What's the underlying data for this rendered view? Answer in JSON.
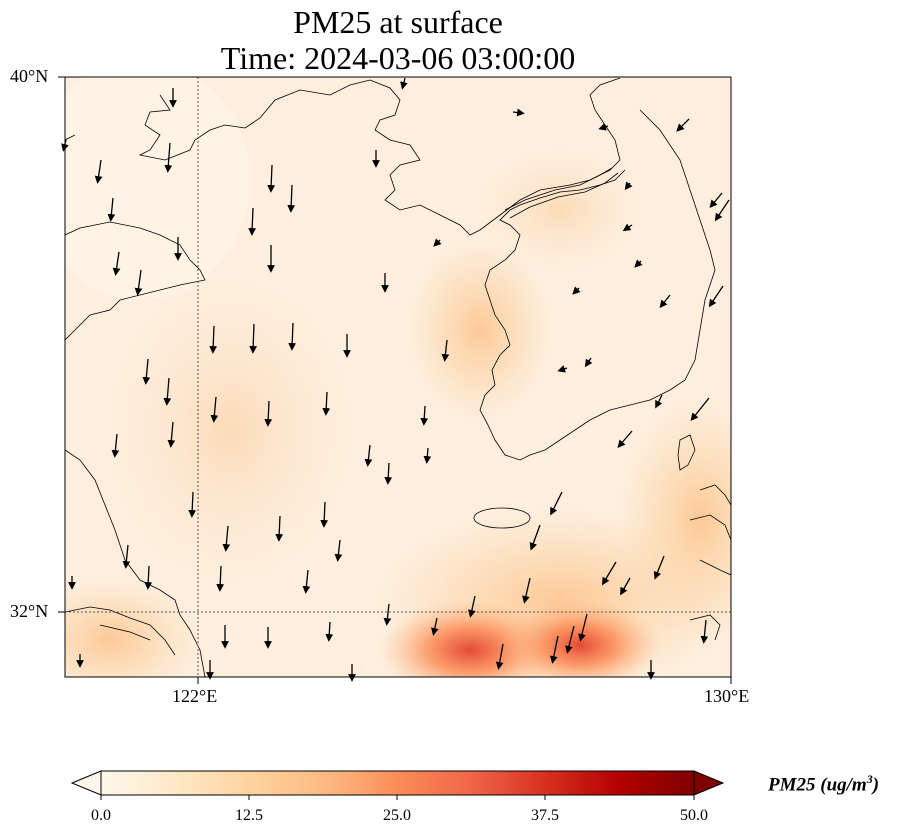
{
  "title_line1": "PM25 at surface",
  "title_line2": "Time: 2024-03-06 03:00:00",
  "axes": {
    "lat_labels": [
      "40°N",
      "32°N"
    ],
    "lon_labels": [
      "122°E",
      "130°E"
    ]
  },
  "colorbar": {
    "label": "PM25 (ug/m",
    "label_sup": "3",
    "label_end": ")",
    "ticks": [
      "0.0",
      "12.5",
      "25.0",
      "37.5",
      "50.0"
    ],
    "range": [
      0,
      50
    ],
    "colormap": "OrRd",
    "extend": "both"
  },
  "chart_data": {
    "type": "heatmap",
    "variable": "PM25",
    "units": "ug/m3",
    "lon_range": [
      120,
      130
    ],
    "lat_range": [
      31,
      40
    ],
    "gridlines": {
      "lon": [
        122
      ],
      "lat": [
        32
      ]
    },
    "overlays": [
      "wind vectors",
      "coastlines"
    ]
  },
  "colors": {
    "background": "#fdf0e1",
    "coast": "#000000"
  }
}
